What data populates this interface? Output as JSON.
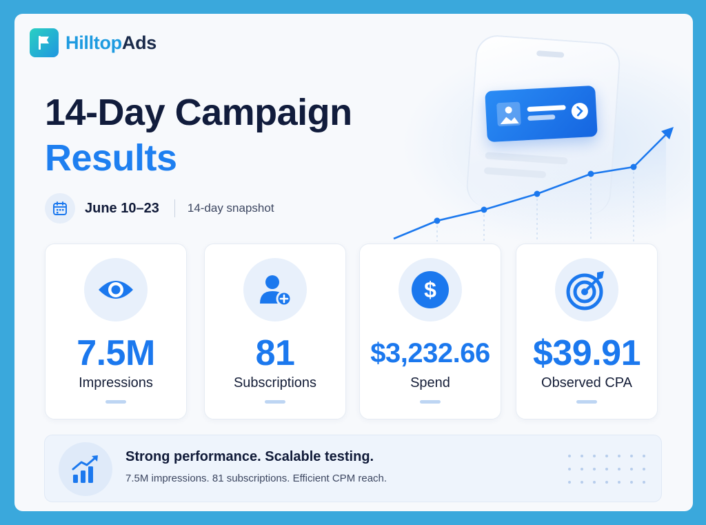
{
  "brand": {
    "name_part1": "Hilltop",
    "name_part2": "Ads",
    "icon": "flag-icon"
  },
  "title": {
    "line1": "14-Day Campaign",
    "line2": "Results"
  },
  "date": {
    "range": "June 10–23",
    "note": "14-day snapshot",
    "icon": "calendar-icon"
  },
  "stats": [
    {
      "value": "7.5M",
      "label": "Impressions",
      "icon": "eye-icon"
    },
    {
      "value": "81",
      "label": "Subscriptions",
      "icon": "user-plus-icon"
    },
    {
      "value": "$3,232.66",
      "label": "Spend",
      "icon": "dollar-icon"
    },
    {
      "value": "$39.91",
      "label": "Observed CPA",
      "icon": "target-icon"
    }
  ],
  "summary": {
    "headline": "Strong performance. Scalable testing.",
    "detail": "7.5M impressions. 81 subscriptions. Efficient CPM reach.",
    "icon": "growth-chart-icon"
  },
  "colors": {
    "accent": "#1b78ee",
    "frame": "#3aa8dc",
    "heading": "#111c3c"
  }
}
